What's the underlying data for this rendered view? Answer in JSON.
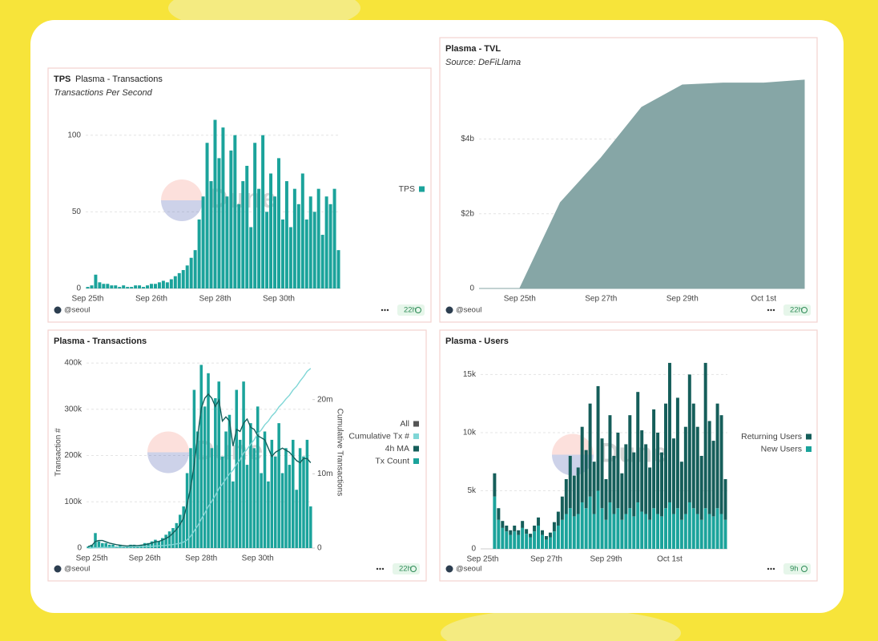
{
  "chart_data": [
    {
      "type": "bar",
      "badge": "TPS",
      "title": "Plasma - Transactions",
      "subtitle": "Transactions Per Second",
      "watermark": "Dune",
      "categories": [
        "Sep 25th",
        null,
        null,
        null,
        null,
        null,
        null,
        null,
        null,
        null,
        null,
        null,
        null,
        null,
        null,
        null,
        "Sep 26th",
        null,
        null,
        null,
        null,
        null,
        null,
        null,
        null,
        null,
        null,
        null,
        null,
        null,
        null,
        null,
        "Sep 28th",
        null,
        null,
        null,
        null,
        null,
        null,
        null,
        null,
        null,
        null,
        null,
        null,
        null,
        null,
        null,
        "Sep 30th",
        null,
        null,
        null,
        null,
        null,
        null,
        null,
        null,
        null,
        null,
        null,
        null,
        null,
        null,
        null
      ],
      "series": [
        {
          "name": "TPS",
          "color": "#1ba39b",
          "values": [
            1,
            2,
            9,
            4,
            3,
            3,
            2,
            2,
            1,
            2,
            1,
            1,
            2,
            2,
            1,
            2,
            3,
            3,
            4,
            5,
            4,
            6,
            8,
            10,
            12,
            15,
            20,
            25,
            45,
            60,
            95,
            70,
            110,
            85,
            105,
            60,
            90,
            100,
            55,
            70,
            80,
            40,
            95,
            65,
            100,
            50,
            75,
            60,
            85,
            45,
            70,
            40,
            65,
            55,
            75,
            45,
            60,
            50,
            65,
            35,
            60,
            55,
            65,
            25
          ]
        }
      ],
      "ylim": [
        0,
        115
      ],
      "yticks": [
        0,
        50,
        100
      ],
      "grid": true,
      "legend": "right",
      "footer": {
        "author": "@seoul",
        "updated": "22h"
      }
    },
    {
      "type": "area",
      "title": "Plasma - TVL",
      "subtitle": "Source: DeFiLlama",
      "watermark": "Dune",
      "categories": [
        null,
        "Sep 25th",
        null,
        "Sep 27th",
        null,
        "Sep 29th",
        null,
        "Oct 1st",
        null
      ],
      "series": [
        {
          "name": "TVL",
          "color": "#86a6a6",
          "values": [
            0,
            0,
            2300000000,
            3500000000,
            4850000000,
            5450000000,
            5500000000,
            5500000000,
            5580000000
          ]
        }
      ],
      "ylim": [
        0,
        5900000000
      ],
      "yticks": [
        0,
        {
          "value": 2000000000,
          "label": "$2b"
        },
        {
          "value": 4000000000,
          "label": "$4b"
        }
      ],
      "grid": true,
      "footer": {
        "author": "@seoul",
        "updated": "22h"
      }
    },
    {
      "type": "combo",
      "title": "Plasma - Transactions",
      "watermark": "Dune",
      "ylabel": "Transaction #",
      "y2label": "Cumulative Transactions",
      "legend_all": "All",
      "categories": [
        null,
        "Sep 25th",
        null,
        null,
        null,
        null,
        null,
        null,
        null,
        null,
        null,
        null,
        null,
        null,
        null,
        null,
        "Sep 26th",
        null,
        null,
        null,
        null,
        null,
        null,
        null,
        null,
        null,
        null,
        null,
        null,
        null,
        null,
        null,
        "Sep 28th",
        null,
        null,
        null,
        null,
        null,
        null,
        null,
        null,
        null,
        null,
        null,
        null,
        null,
        null,
        null,
        "Sep 30th",
        null,
        null,
        null,
        null,
        null,
        null,
        null,
        null,
        null,
        null,
        null,
        null,
        null,
        null,
        null
      ],
      "series": [
        {
          "name": "Cumulative Tx #",
          "color": "#7fd6d6",
          "kind": "line",
          "axis": "y2",
          "values": [
            0,
            10000,
            40000,
            60000,
            80000,
            90000,
            100000,
            110000,
            120000,
            130000,
            140000,
            150000,
            160000,
            170000,
            180000,
            190000,
            200000,
            220000,
            240000,
            270000,
            300000,
            330000,
            370000,
            420000,
            480000,
            560000,
            660000,
            800000,
            1100000,
            1600000,
            2300000,
            3000000,
            3900000,
            4700000,
            5600000,
            6300000,
            7100000,
            8000000,
            8600000,
            9300000,
            10000000,
            10500000,
            11300000,
            11900000,
            12800000,
            13300000,
            14000000,
            14600000,
            15400000,
            15900000,
            16600000,
            17100000,
            17800000,
            18300000,
            19000000,
            19500000,
            20100000,
            20600000,
            21300000,
            21800000,
            22500000,
            23100000,
            23800000,
            24200000
          ]
        },
        {
          "name": "4h MA",
          "color": "#155e5a",
          "kind": "line",
          "values": [
            3600,
            5400,
            14400,
            16200,
            16200,
            13500,
            10800,
            9000,
            7200,
            6300,
            5400,
            4500,
            5400,
            5400,
            5400,
            6300,
            7200,
            9000,
            10800,
            13500,
            14400,
            17100,
            20700,
            25200,
            32400,
            40500,
            51300,
            64800,
            94500,
            130500,
            180000,
            243000,
            301500,
            324000,
            333000,
            324000,
            306000,
            320000,
            274500,
            283500,
            274500,
            220500,
            256500,
            252000,
            270000,
            279000,
            261000,
            256500,
            243000,
            238500,
            234000,
            216000,
            198000,
            207000,
            211500,
            216000,
            211500,
            207000,
            198000,
            189000,
            184500,
            193500,
            193500,
            184500
          ]
        },
        {
          "name": "Tx Count",
          "color": "#1ba39b",
          "kind": "bar",
          "values": [
            3600,
            7200,
            32400,
            14400,
            10800,
            10800,
            7200,
            7200,
            3600,
            7200,
            3600,
            3600,
            7200,
            7200,
            3600,
            7200,
            10800,
            10800,
            14400,
            18000,
            14400,
            21600,
            28800,
            36000,
            43200,
            54000,
            72000,
            90000,
            162000,
            216000,
            342000,
            252000,
            396000,
            306000,
            378000,
            216000,
            324000,
            360000,
            198000,
            252000,
            288000,
            144000,
            342000,
            234000,
            360000,
            180000,
            270000,
            216000,
            306000,
            162000,
            252000,
            144000,
            234000,
            198000,
            270000,
            162000,
            216000,
            180000,
            234000,
            126000,
            216000,
            198000,
            234000,
            90000
          ]
        }
      ],
      "ylim": [
        0,
        414000
      ],
      "yticks": [
        0,
        {
          "value": 100000,
          "label": "100k"
        },
        {
          "value": 200000,
          "label": "200k"
        },
        {
          "value": 300000,
          "label": "300k"
        },
        {
          "value": 400000,
          "label": "400k"
        }
      ],
      "y2lim": [
        0,
        25800000
      ],
      "y2ticks": [
        0,
        {
          "value": 10000000,
          "label": "10m"
        },
        {
          "value": 20000000,
          "label": "20m"
        }
      ],
      "grid": true,
      "legend": "right",
      "footer": {
        "author": "@seoul",
        "updated": "22h"
      }
    },
    {
      "type": "stacked_bar",
      "title": "Plasma - Users",
      "watermark": "Dune",
      "categories": [
        "Sep 25th",
        null,
        null,
        null,
        null,
        null,
        null,
        null,
        null,
        null,
        null,
        null,
        null,
        null,
        null,
        null,
        "Sep 27th",
        null,
        null,
        null,
        null,
        null,
        null,
        null,
        null,
        null,
        null,
        null,
        null,
        null,
        null,
        "Sep 29th",
        null,
        null,
        null,
        null,
        null,
        null,
        null,
        null,
        null,
        null,
        null,
        null,
        null,
        null,
        null,
        "Oct 1st",
        null,
        null,
        null,
        null,
        null,
        null,
        null,
        null,
        null,
        null,
        null,
        null,
        null,
        null
      ],
      "series": [
        {
          "name": "Returning Users",
          "color": "#155e5a",
          "values": [
            0,
            0,
            0,
            2000,
            1000,
            600,
            500,
            400,
            500,
            400,
            600,
            400,
            300,
            500,
            700,
            400,
            300,
            400,
            800,
            1200,
            2000,
            3000,
            4500,
            3500,
            4000,
            6500,
            5000,
            8000,
            4500,
            9000,
            6000,
            3500,
            7500,
            5000,
            6500,
            4000,
            6000,
            8000,
            5500,
            9500,
            7000,
            6000,
            4500,
            8500,
            7000,
            5500,
            9000,
            12000,
            6500,
            9500,
            5000,
            7500,
            11000,
            9000,
            7500,
            5500,
            12500,
            8000,
            6500,
            9000,
            8500,
            3500
          ]
        },
        {
          "name": "New Users",
          "color": "#1ba39b",
          "values": [
            0,
            0,
            0,
            4500,
            2500,
            1800,
            1500,
            1200,
            1500,
            1200,
            1800,
            1300,
            1000,
            1500,
            2000,
            1200,
            800,
            1000,
            1500,
            2000,
            2500,
            3000,
            3500,
            2800,
            3000,
            4000,
            3500,
            4500,
            3000,
            5000,
            3500,
            2500,
            4000,
            3000,
            3500,
            2500,
            3000,
            3500,
            2800,
            4000,
            3200,
            3000,
            2500,
            3500,
            3000,
            2800,
            3500,
            4000,
            3000,
            3500,
            2500,
            3000,
            4000,
            3500,
            3000,
            2500,
            3500,
            3000,
            2800,
            3500,
            3000,
            2500
          ]
        }
      ],
      "ylim": [
        0,
        16200
      ],
      "yticks": [
        0,
        {
          "value": 5000,
          "label": "5k"
        },
        {
          "value": 10000,
          "label": "10k"
        },
        {
          "value": 15000,
          "label": "15k"
        }
      ],
      "grid": true,
      "legend": "right",
      "footer": {
        "author": "@seoul",
        "updated": "9h"
      }
    }
  ]
}
